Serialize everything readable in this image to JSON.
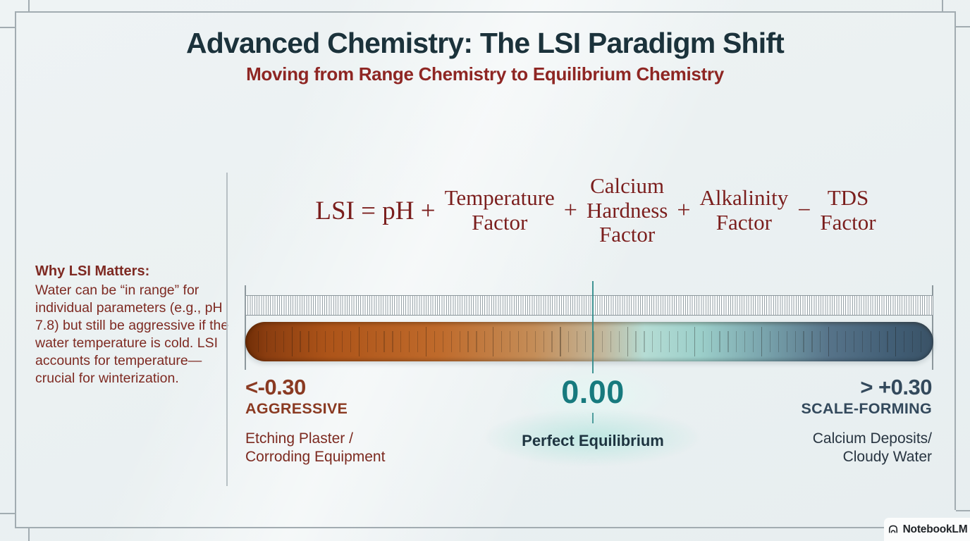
{
  "header": {
    "title": "Advanced Chemistry: The LSI Paradigm Shift",
    "subtitle": "Moving from Range Chemistry to Equilibrium Chemistry"
  },
  "sidebar": {
    "heading": "Why LSI Matters:",
    "body": "Water can be “in range” for individual parameters (e.g., pH 7.8) but still be aggressive if the water temperature is cold. LSI accounts for temperature— crucial for winterization."
  },
  "formula": {
    "intro": "LSI = pH +",
    "terms": [
      {
        "lines": [
          "Temperature",
          "Factor"
        ]
      },
      {
        "lines": [
          "Calcium",
          "Hardness",
          "Factor"
        ]
      },
      {
        "lines": [
          "Alkalinity",
          "Factor"
        ]
      },
      {
        "lines": [
          "TDS",
          "Factor"
        ]
      }
    ],
    "operators": [
      "+",
      "+",
      "−"
    ]
  },
  "scale": {
    "left": {
      "value": "<-0.30",
      "category": "AGGRESSIVE",
      "description": [
        "Etching Plaster /",
        "Corroding Equipment"
      ]
    },
    "center": {
      "value": "0.00",
      "category": "Perfect Equilibrium"
    },
    "right": {
      "value": "> +0.30",
      "category": "SCALE-FORMING",
      "description": [
        "Calcium Deposits/",
        "Cloudy Water"
      ]
    },
    "gradient_stops": [
      {
        "pos": 0,
        "color": "#6f2d06"
      },
      {
        "pos": 3,
        "color": "#8a3d10"
      },
      {
        "pos": 12,
        "color": "#ad5419"
      },
      {
        "pos": 28,
        "color": "#bf6a2b"
      },
      {
        "pos": 42,
        "color": "#c48d58"
      },
      {
        "pos": 52,
        "color": "#c2b79c"
      },
      {
        "pos": 58,
        "color": "#b5dcd4"
      },
      {
        "pos": 66,
        "color": "#9ccfca"
      },
      {
        "pos": 75,
        "color": "#7ba6ae"
      },
      {
        "pos": 85,
        "color": "#567389"
      },
      {
        "pos": 95,
        "color": "#405c73"
      },
      {
        "pos": 100,
        "color": "#3a5266"
      }
    ]
  },
  "footer": {
    "brand": "NotebookLM"
  },
  "colors": {
    "title": "#1b323b",
    "subtitle_maroon": "#8e2623",
    "formula_maroon": "#7a1e1d",
    "aggressive": "#8a3a22",
    "equilibrium_teal": "#177a7e",
    "scale_forming": "#33495c",
    "center_line": "#2d8a8a",
    "frame": "#a2acb1"
  }
}
